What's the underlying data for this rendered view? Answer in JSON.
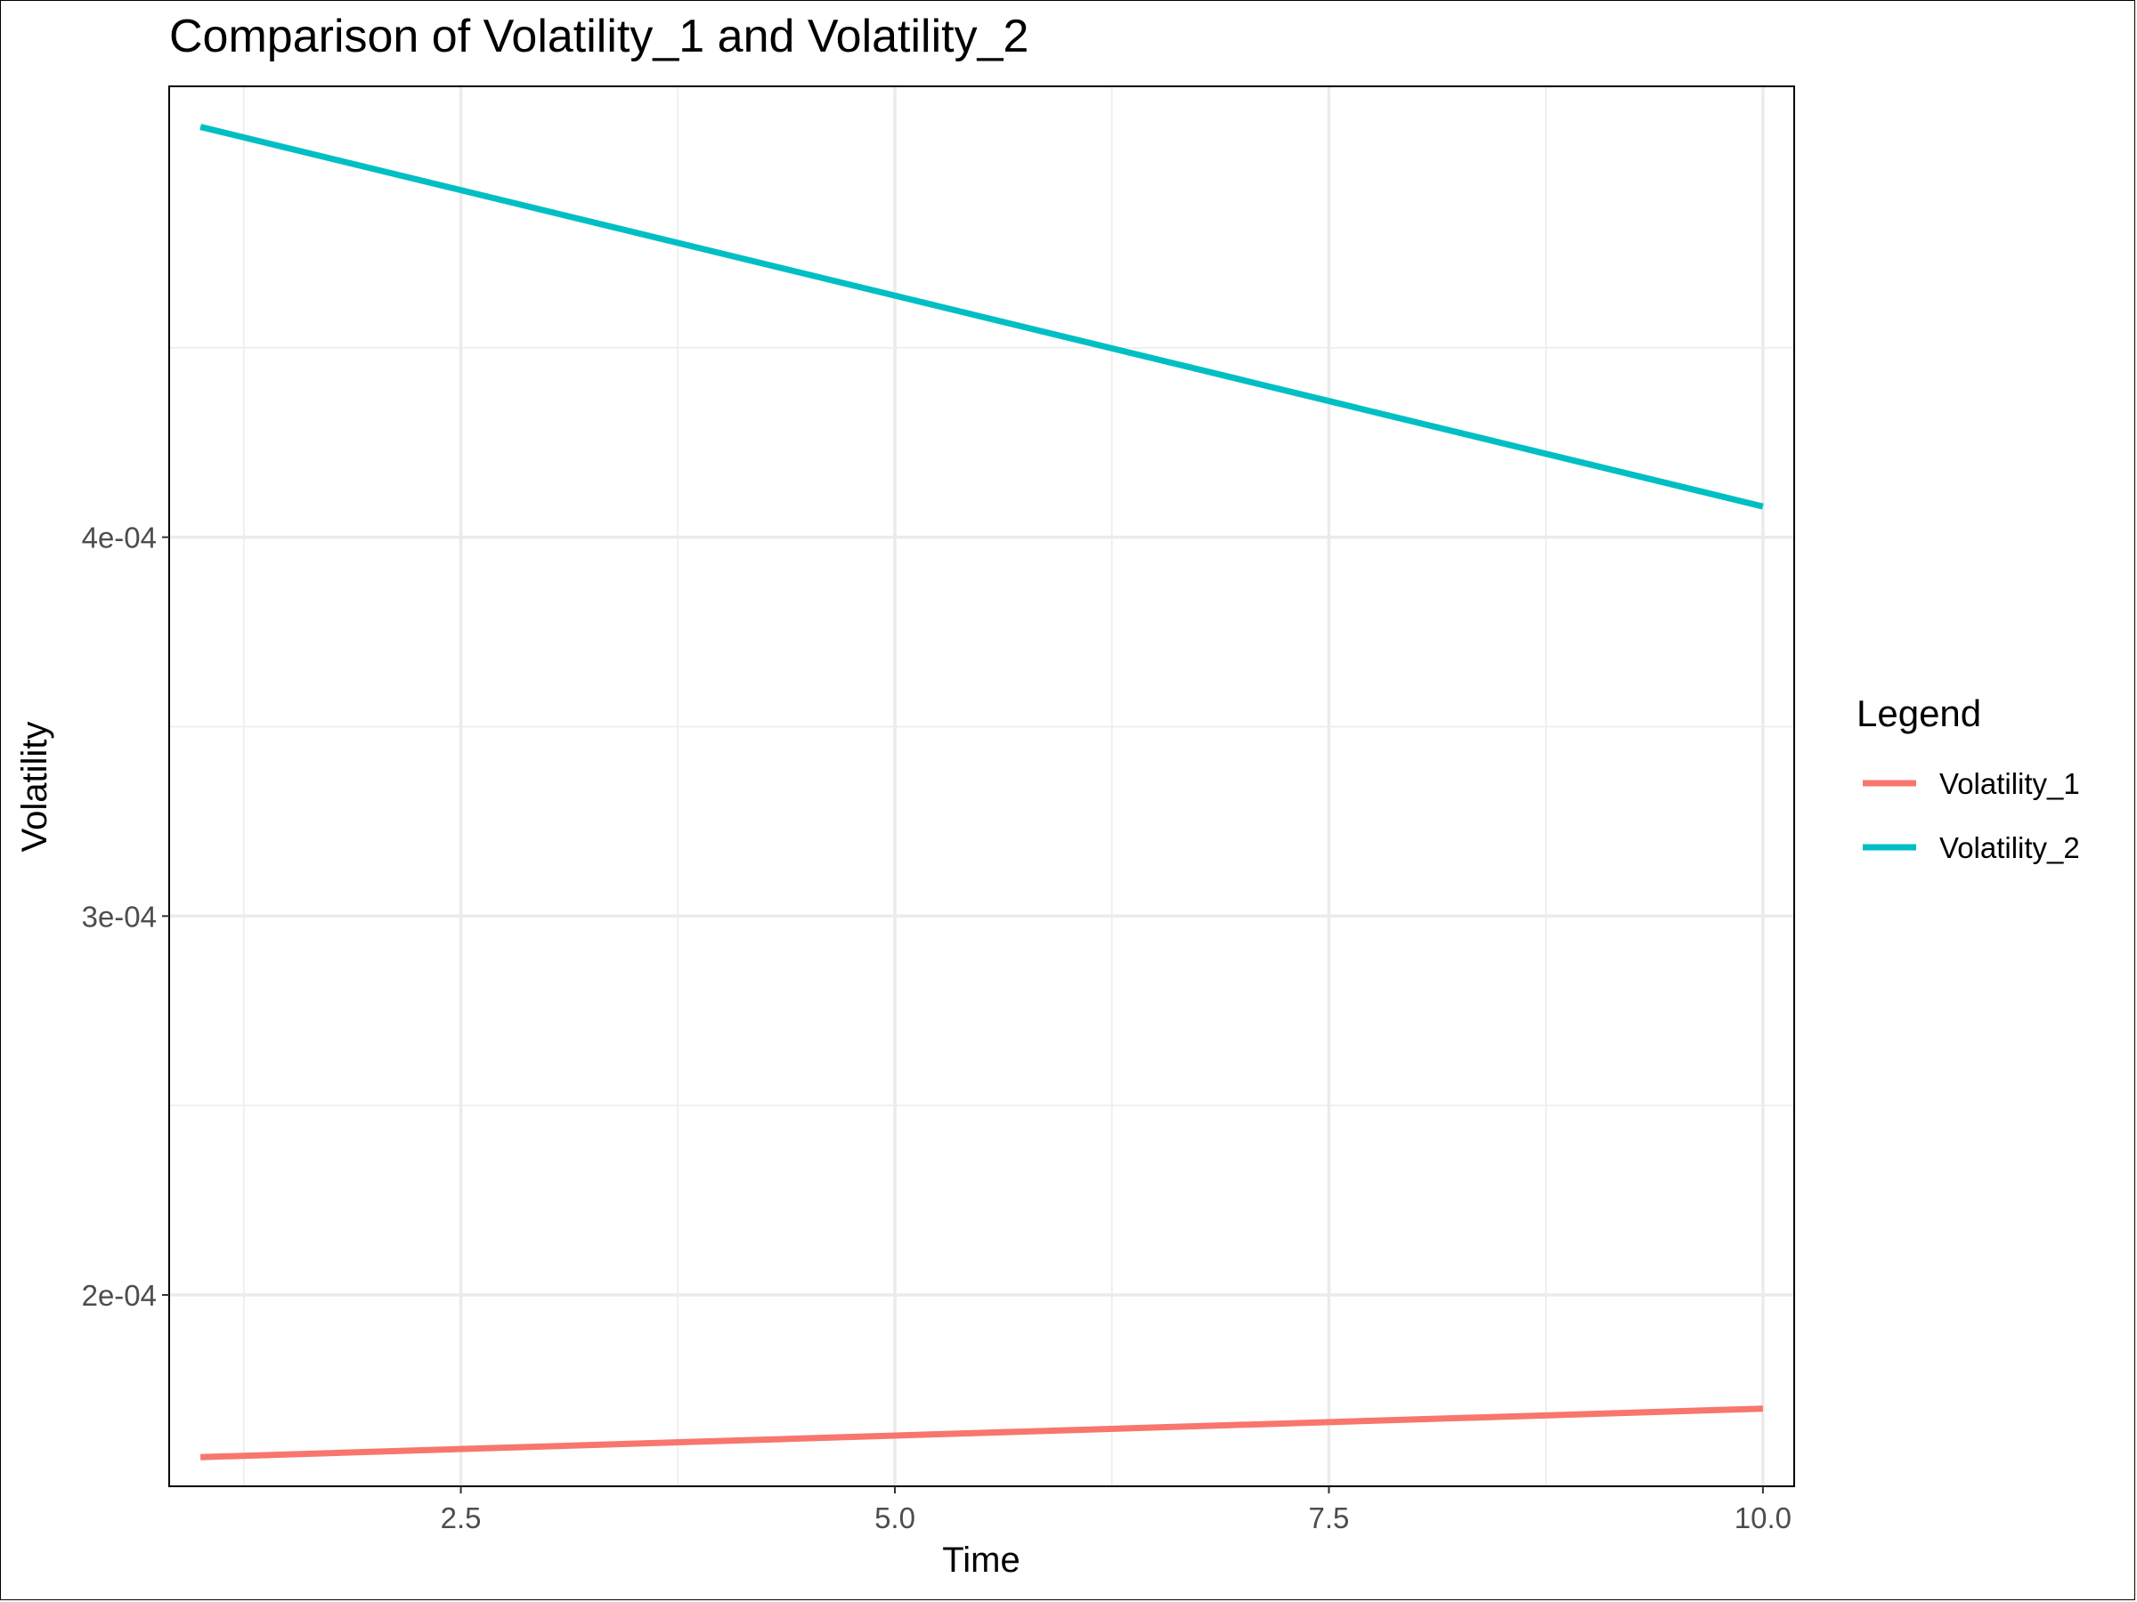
{
  "chart_data": {
    "type": "line",
    "title": "Comparison of Volatility_1 and Volatility_2",
    "xlabel": "Time",
    "ylabel": "Volatility",
    "xlim": [
      0.82,
      10.18
    ],
    "ylim": [
      0.0001495,
      0.000519
    ],
    "x_ticks": [
      2.5,
      5.0,
      7.5,
      10.0
    ],
    "x_tick_labels": [
      "2.5",
      "5.0",
      "7.5",
      "10.0"
    ],
    "x_minor_ticks": [
      1.25,
      3.75,
      6.25,
      8.75
    ],
    "y_ticks": [
      0.0002,
      0.0003,
      0.0004
    ],
    "y_tick_labels": [
      "2e-04",
      "3e-04",
      "4e-04"
    ],
    "y_minor_ticks": [
      0.00015,
      0.00025,
      0.00035,
      0.00045
    ],
    "grid": true,
    "legend": {
      "title": "Legend",
      "placement": "right"
    },
    "series": [
      {
        "name": "Volatility_1",
        "color": "#F8766D",
        "x": [
          1,
          10
        ],
        "y": [
          0.0001572,
          0.00017
        ]
      },
      {
        "name": "Volatility_2",
        "color": "#00BFC4",
        "x": [
          1,
          10
        ],
        "y": [
          0.0005083,
          0.0004081
        ]
      }
    ]
  }
}
